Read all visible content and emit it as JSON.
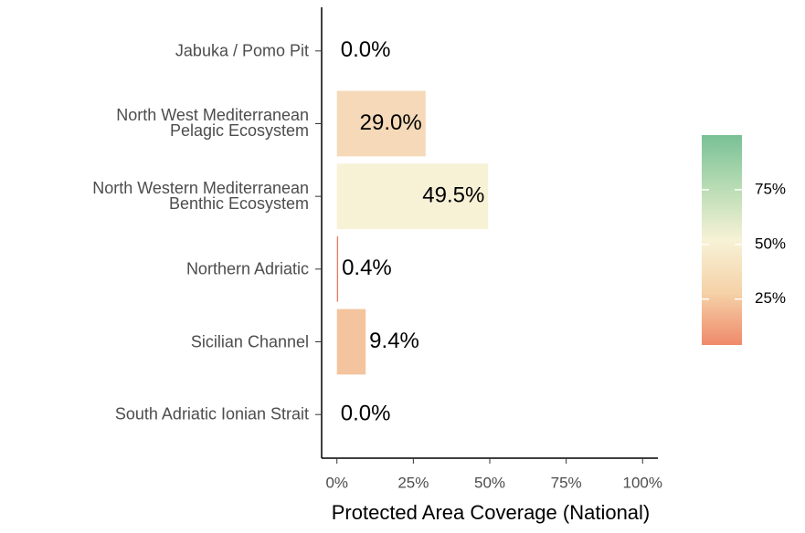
{
  "chart_data": {
    "type": "barh",
    "x_label": "Protected Area Coverage (National)",
    "categories": [
      "Jabuka / Pomo Pit",
      "North West Mediterranean\nPelagic Ecosystem",
      "North Western Mediterranean\nBenthic Ecosystem",
      "Northern Adriatic",
      "Sicilian Channel",
      "South Adriatic Ionian Strait"
    ],
    "values": [
      0,
      29.0,
      49.5,
      0.4,
      9.4,
      0
    ],
    "value_labels": [
      "0.0%",
      "29.0%",
      "49.5%",
      "0.4%",
      "9.4%",
      "0.0%"
    ],
    "colors": [
      "#ef8a6a",
      "#f5d9b8",
      "#f7f1d6",
      "#ec7b60",
      "#f3c49d",
      "#ef8a6a"
    ],
    "xlim": [
      -5,
      105
    ],
    "xticks": [
      {
        "value": 0,
        "label": "0%"
      },
      {
        "value": 25,
        "label": "25%"
      },
      {
        "value": 50,
        "label": "50%"
      },
      {
        "value": 75,
        "label": "75%"
      },
      {
        "value": 100,
        "label": "100%"
      }
    ],
    "legend": {
      "lim": [
        4,
        100
      ],
      "colors": [
        "#ef8a6a",
        "#f5d2a8",
        "#f7f2d6",
        "#b8dcb4",
        "#79c096"
      ],
      "ticks": [
        {
          "value": 25,
          "label": "25%"
        },
        {
          "value": 50,
          "label": "50%"
        },
        {
          "value": 75,
          "label": "75%"
        }
      ]
    }
  }
}
